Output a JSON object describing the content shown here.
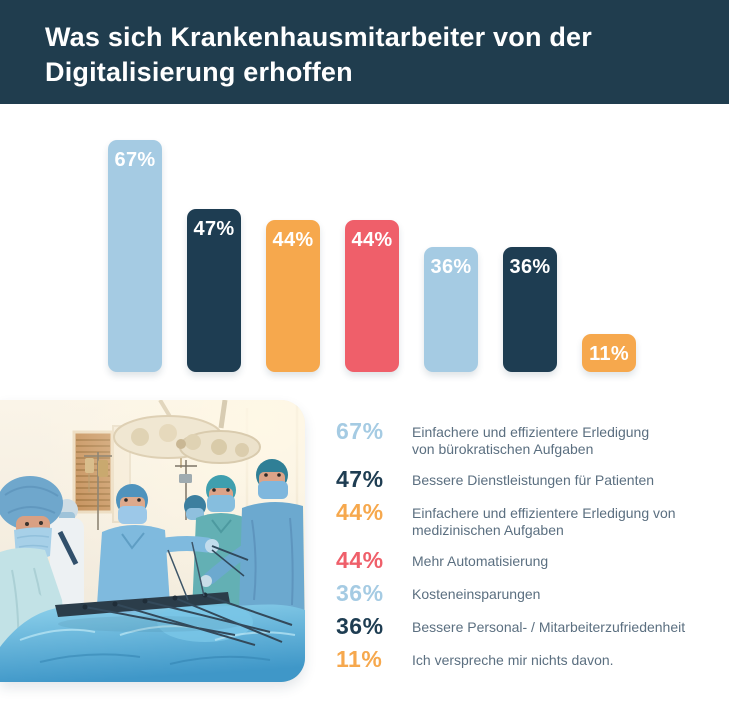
{
  "header": {
    "title": "Was sich Krankenhausmitarbeiter von der Digitalisierung erhoffen"
  },
  "palette": {
    "header_background": "#203d4e",
    "light_blue": "#a5cbe3",
    "navy": "#1e3d52",
    "orange": "#f6a84d",
    "red": "#ef5f6a",
    "legend_text": "#5b6f80",
    "page_background": "#ffffff",
    "bar_label_color": "#ffffff"
  },
  "chart_data": {
    "type": "bar",
    "title": "Was sich Krankenhausmitarbeiter von der Digitalisierung erhoffen",
    "categories": [
      "Einfachere und effizientere Erledigung von bürokratischen Aufgaben",
      "Bessere Dienstleistungen für Patienten",
      "Einfachere und effizientere Erledigung von medizinischen Aufgaben",
      "Mehr Automatisierung",
      "Kosteneinsparungen",
      "Bessere Personal- / Mitarbeiterzufriedenheit",
      "Ich verspreche mir nichts davon."
    ],
    "values": [
      67,
      47,
      44,
      44,
      36,
      36,
      11
    ],
    "value_labels": [
      "67%",
      "47%",
      "44%",
      "44%",
      "36%",
      "36%",
      "11%"
    ],
    "bar_colors": [
      "#a5cbe3",
      "#1e3d52",
      "#f6a84d",
      "#ef5f6a",
      "#a5cbe3",
      "#1e3d52",
      "#f6a84d"
    ],
    "unit": "%",
    "ylim": [
      0,
      70
    ],
    "grid": false,
    "axes_visible": false,
    "value_label_position": "inside-top",
    "legend_position": "bottom-right"
  },
  "legend": {
    "items": [
      {
        "value": "67%",
        "label": "Einfachere und effizientere Erledigung\nvon bürokratischen Aufgaben",
        "color": "#a5cbe3"
      },
      {
        "value": "47%",
        "label": "Bessere Dienstleistungen für Patienten",
        "color": "#1e3d52"
      },
      {
        "value": "44%",
        "label": "Einfachere und effizientere Erledigung von\nmedizinischen Aufgaben",
        "color": "#f6a84d"
      },
      {
        "value": "44%",
        "label": "Mehr Automatisierung",
        "color": "#ef5f6a"
      },
      {
        "value": "36%",
        "label": "Kosteneinsparungen",
        "color": "#a5cbe3"
      },
      {
        "value": "36%",
        "label": "Bessere Personal- / Mitarbeiterzufriedenheit",
        "color": "#1e3d52"
      },
      {
        "value": "11%",
        "label": "Ich verspreche mir nichts davon.",
        "color": "#f6a84d"
      }
    ]
  },
  "photo": {
    "semantic": "operating-room-surgical-team-photo"
  }
}
